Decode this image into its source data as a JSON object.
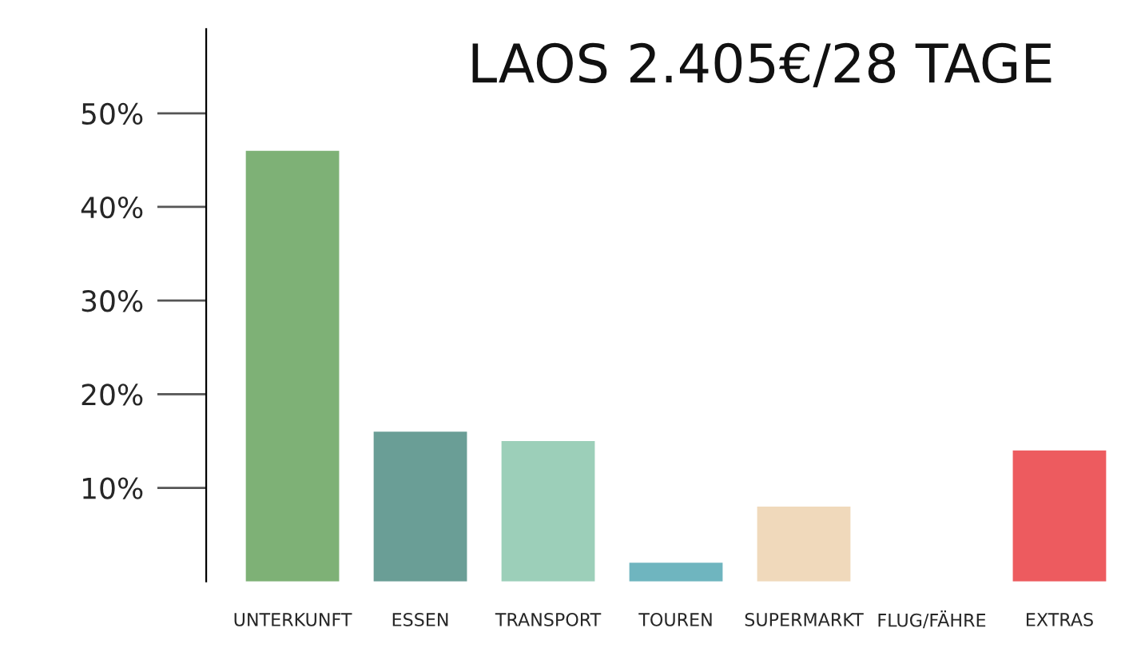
{
  "chart_data": {
    "type": "bar",
    "title": "LAOS 2.405€/28 TAGE",
    "categories": [
      "UNTERKUNFT",
      "ESSEN",
      "TRANSPORT",
      "TOUREN",
      "SUPERMARKT",
      "FLUG/FÄHRE",
      "EXTRAS"
    ],
    "values": [
      46,
      16,
      15,
      2,
      8,
      0,
      14
    ],
    "colors": [
      "#7eb176",
      "#6a9e96",
      "#9ccfb9",
      "#6fb5bf",
      "#f0d9bb",
      "#cccccc",
      "#ed5b5f"
    ],
    "ylim": [
      0,
      59
    ],
    "yticks": [
      {
        "value": 10,
        "label": "10%"
      },
      {
        "value": 20,
        "label": "20%"
      },
      {
        "value": 30,
        "label": "30%"
      },
      {
        "value": 40,
        "label": "40%"
      },
      {
        "value": 50,
        "label": "50%"
      }
    ],
    "grid": false,
    "legend": false
  }
}
